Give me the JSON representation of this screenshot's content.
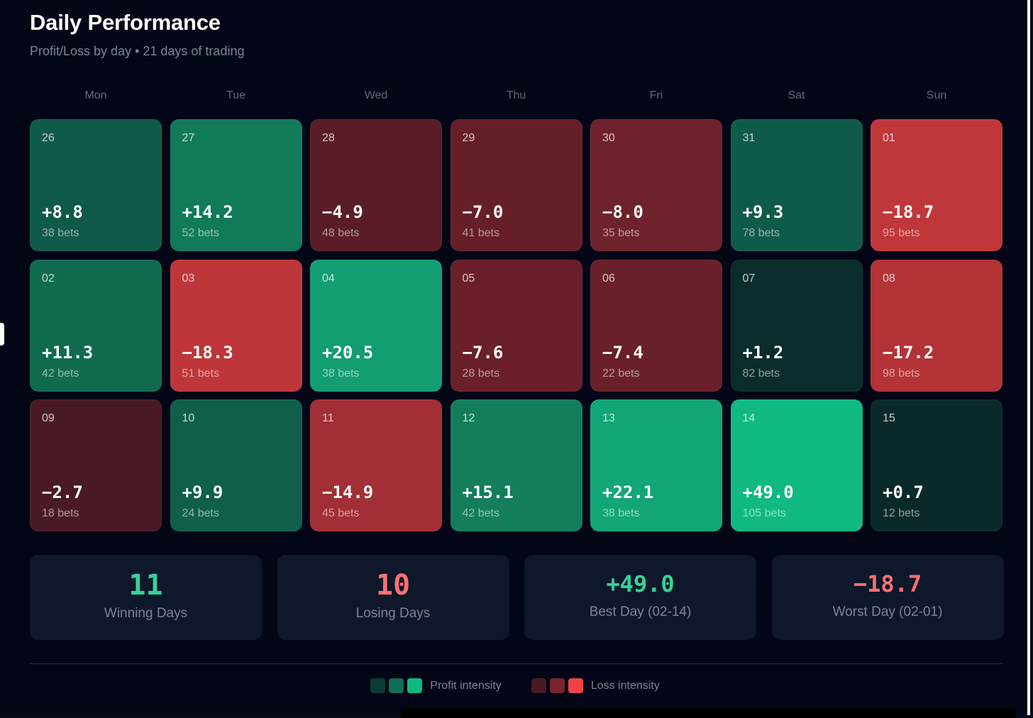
{
  "header": {
    "title": "Daily Performance",
    "subtitle": "Profit/Loss by day • 21 days of trading"
  },
  "chart_data": {
    "type": "heatmap",
    "title": "Daily Performance",
    "subtitle": "Profit/Loss by day • 21 days of trading",
    "weekdays": [
      "Mon",
      "Tue",
      "Wed",
      "Thu",
      "Fri",
      "Sat",
      "Sun"
    ],
    "days": [
      {
        "date": "26",
        "pnl": "+8.8",
        "value": 8.8,
        "bets": "38 bets",
        "color": "#0f5a48"
      },
      {
        "date": "27",
        "pnl": "+14.2",
        "value": 14.2,
        "bets": "52 bets",
        "color": "#107a5b"
      },
      {
        "date": "28",
        "pnl": "−4.9",
        "value": -4.9,
        "bets": "48 bets",
        "color": "#5a1d27"
      },
      {
        "date": "29",
        "pnl": "−7.0",
        "value": -7.0,
        "bets": "41 bets",
        "color": "#661e29"
      },
      {
        "date": "30",
        "pnl": "−8.0",
        "value": -8.0,
        "bets": "35 bets",
        "color": "#6e222b"
      },
      {
        "date": "31",
        "pnl": "+9.3",
        "value": 9.3,
        "bets": "78 bets",
        "color": "#0f5b49"
      },
      {
        "date": "01",
        "pnl": "−18.7",
        "value": -18.7,
        "bets": "95 bets",
        "color": "#c0373b"
      },
      {
        "date": "02",
        "pnl": "+11.3",
        "value": 11.3,
        "bets": "42 bets",
        "color": "#0f6a50"
      },
      {
        "date": "03",
        "pnl": "−18.3",
        "value": -18.3,
        "bets": "51 bets",
        "color": "#bf363a"
      },
      {
        "date": "04",
        "pnl": "+20.5",
        "value": 20.5,
        "bets": "38 bets",
        "color": "#129d73"
      },
      {
        "date": "05",
        "pnl": "−7.6",
        "value": -7.6,
        "bets": "28 bets",
        "color": "#6a1f2a"
      },
      {
        "date": "06",
        "pnl": "−7.4",
        "value": -7.4,
        "bets": "22 bets",
        "color": "#69202a"
      },
      {
        "date": "07",
        "pnl": "+1.2",
        "value": 1.2,
        "bets": "82 bets",
        "color": "#0a2c2a"
      },
      {
        "date": "08",
        "pnl": "−17.2",
        "value": -17.2,
        "bets": "98 bets",
        "color": "#b33337"
      },
      {
        "date": "09",
        "pnl": "−2.7",
        "value": -2.7,
        "bets": "18 bets",
        "color": "#4a1a24"
      },
      {
        "date": "10",
        "pnl": "+9.9",
        "value": 9.9,
        "bets": "24 bets",
        "color": "#0f5f4b"
      },
      {
        "date": "11",
        "pnl": "−14.9",
        "value": -14.9,
        "bets": "45 bets",
        "color": "#a12f35"
      },
      {
        "date": "12",
        "pnl": "+15.1",
        "value": 15.1,
        "bets": "42 bets",
        "color": "#137d5c"
      },
      {
        "date": "13",
        "pnl": "+22.1",
        "value": 22.1,
        "bets": "38 bets",
        "color": "#12a577"
      },
      {
        "date": "14",
        "pnl": "+49.0",
        "value": 49.0,
        "bets": "105 bets",
        "color": "#10b981"
      },
      {
        "date": "15",
        "pnl": "+0.7",
        "value": 0.7,
        "bets": "12 bets",
        "color": "#0a2a29"
      }
    ]
  },
  "stats": [
    {
      "value": "11",
      "label": "Winning Days",
      "color": "#34d399",
      "size": "big"
    },
    {
      "value": "10",
      "label": "Losing Days",
      "color": "#f87171",
      "size": "big"
    },
    {
      "value": "+49.0",
      "label": "Best Day (02-14)",
      "color": "#34d399",
      "size": "mid"
    },
    {
      "value": "−18.7",
      "label": "Worst Day (02-01)",
      "color": "#f87171",
      "size": "mid"
    }
  ],
  "legend": {
    "profit_label": "Profit intensity",
    "loss_label": "Loss intensity",
    "profit_colors": [
      "#0a3b34",
      "#106e55",
      "#10b981"
    ],
    "loss_colors": [
      "#4a1a24",
      "#7a242d",
      "#ef4444"
    ]
  }
}
